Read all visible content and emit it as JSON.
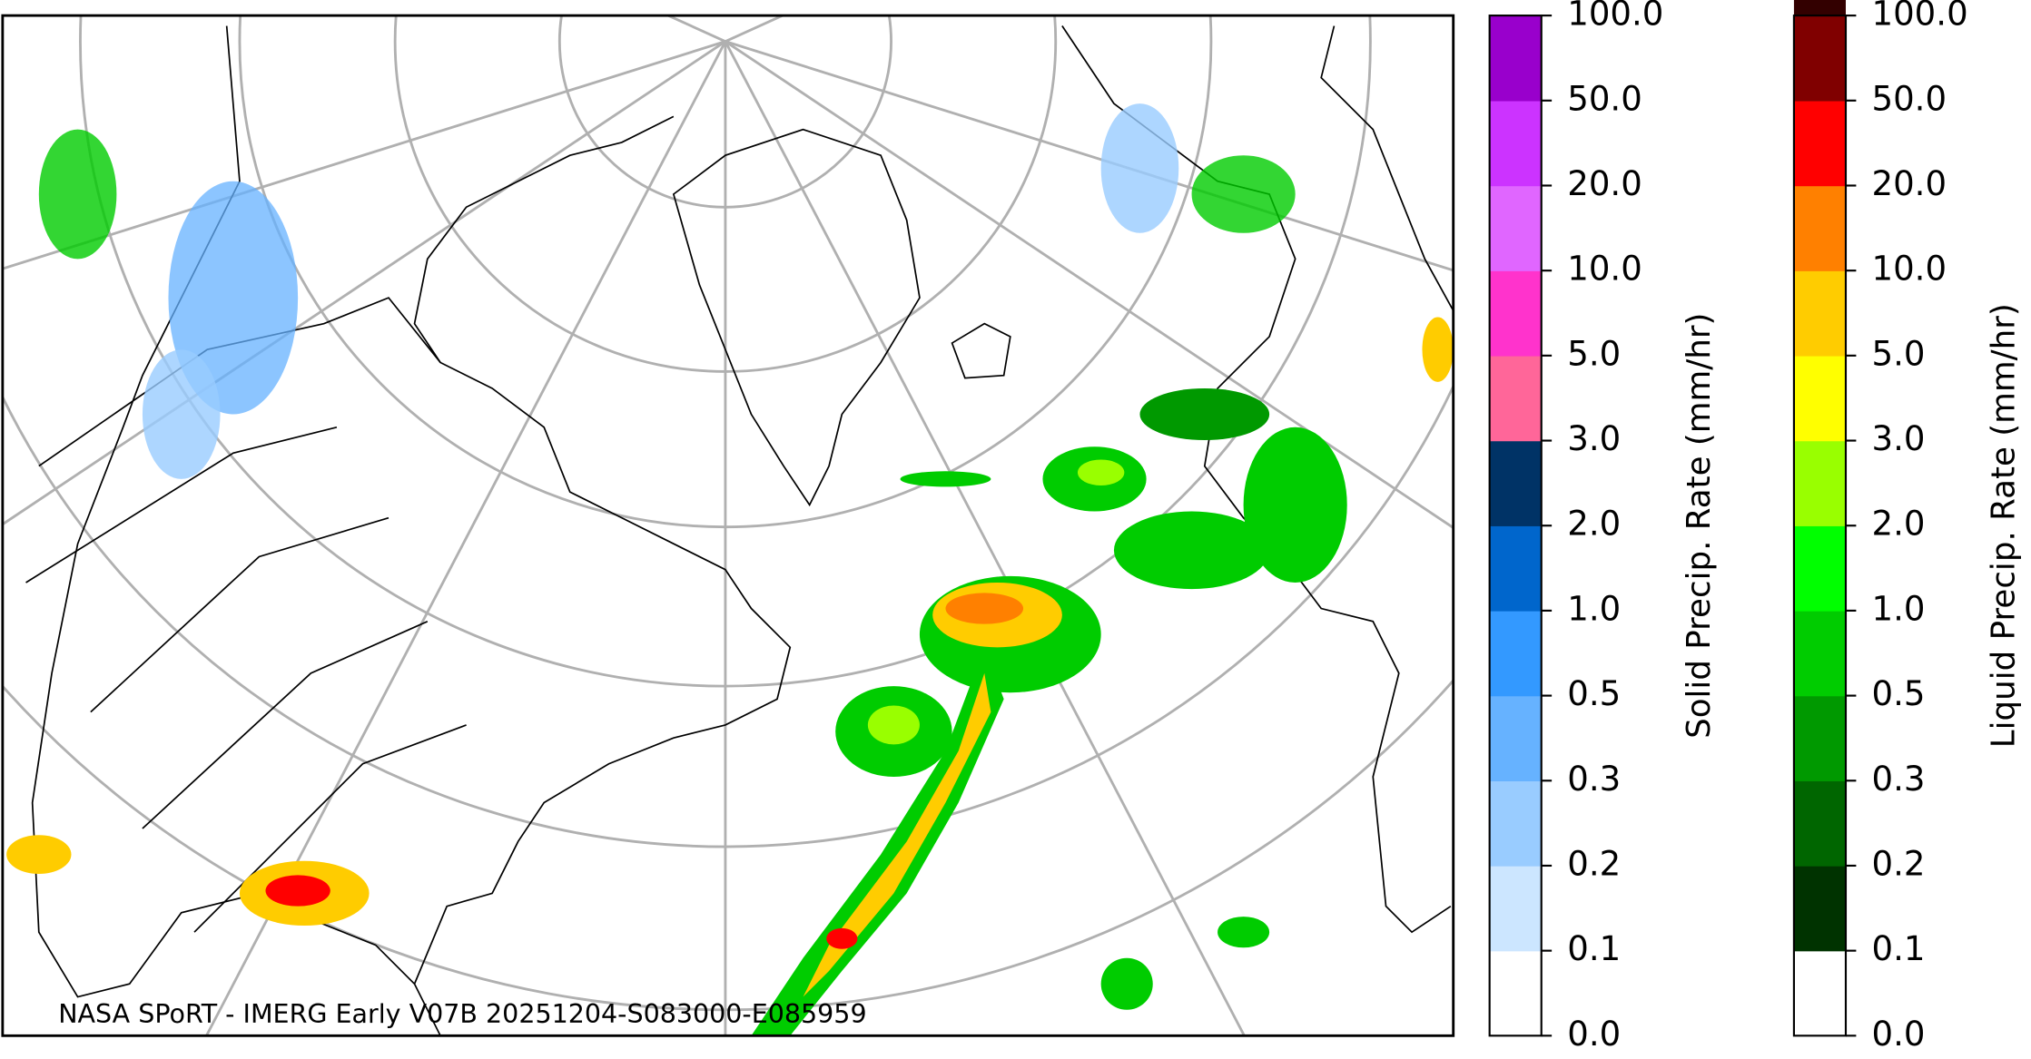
{
  "map": {
    "attribution": "NASA SPoRT - IMERG Early V07B 20251204-S083000-E085959"
  },
  "colorbars": [
    {
      "label": "Solid Precip. Rate (mm/hr)",
      "ticks": [
        {
          "value": 0,
          "label": "0.0"
        },
        {
          "value": 0.1,
          "label": "0.1"
        },
        {
          "value": 0.2,
          "label": "0.2"
        },
        {
          "value": 0.3,
          "label": "0.3"
        },
        {
          "value": 0.5,
          "label": "0.5"
        },
        {
          "value": 1,
          "label": "1.0"
        },
        {
          "value": 2,
          "label": "2.0"
        },
        {
          "value": 3,
          "label": "3.0"
        },
        {
          "value": 5,
          "label": "5.0"
        },
        {
          "value": 10,
          "label": "10.0"
        },
        {
          "value": 20,
          "label": "20.0"
        },
        {
          "value": 50,
          "label": "50.0"
        },
        {
          "value": 100,
          "label": "100.0"
        }
      ],
      "colors": [
        "#ffffff",
        "#cce6ff",
        "#99ccff",
        "#66b2ff",
        "#3399ff",
        "#0066cc",
        "#003366",
        "#ff6699",
        "#ff33cc",
        "#e066ff",
        "#cc33ff",
        "#9900cc"
      ]
    },
    {
      "label": "Liquid Precip. Rate (mm/hr)",
      "ticks": [
        {
          "value": 0,
          "label": "0.0"
        },
        {
          "value": 0.1,
          "label": "0.1"
        },
        {
          "value": 0.2,
          "label": "0.2"
        },
        {
          "value": 0.3,
          "label": "0.3"
        },
        {
          "value": 0.5,
          "label": "0.5"
        },
        {
          "value": 1,
          "label": "1.0"
        },
        {
          "value": 2,
          "label": "2.0"
        },
        {
          "value": 3,
          "label": "3.0"
        },
        {
          "value": 5,
          "label": "5.0"
        },
        {
          "value": 10,
          "label": "10.0"
        },
        {
          "value": 20,
          "label": "20.0"
        },
        {
          "value": 50,
          "label": "50.0"
        },
        {
          "value": 100,
          "label": "100.0"
        }
      ],
      "colors": [
        "#ffffff",
        "#003300",
        "#006600",
        "#009900",
        "#00cc00",
        "#00ff00",
        "#99ff00",
        "#ffff00",
        "#ffcc00",
        "#ff8000",
        "#ff0000",
        "#800000",
        "#330000"
      ]
    }
  ]
}
